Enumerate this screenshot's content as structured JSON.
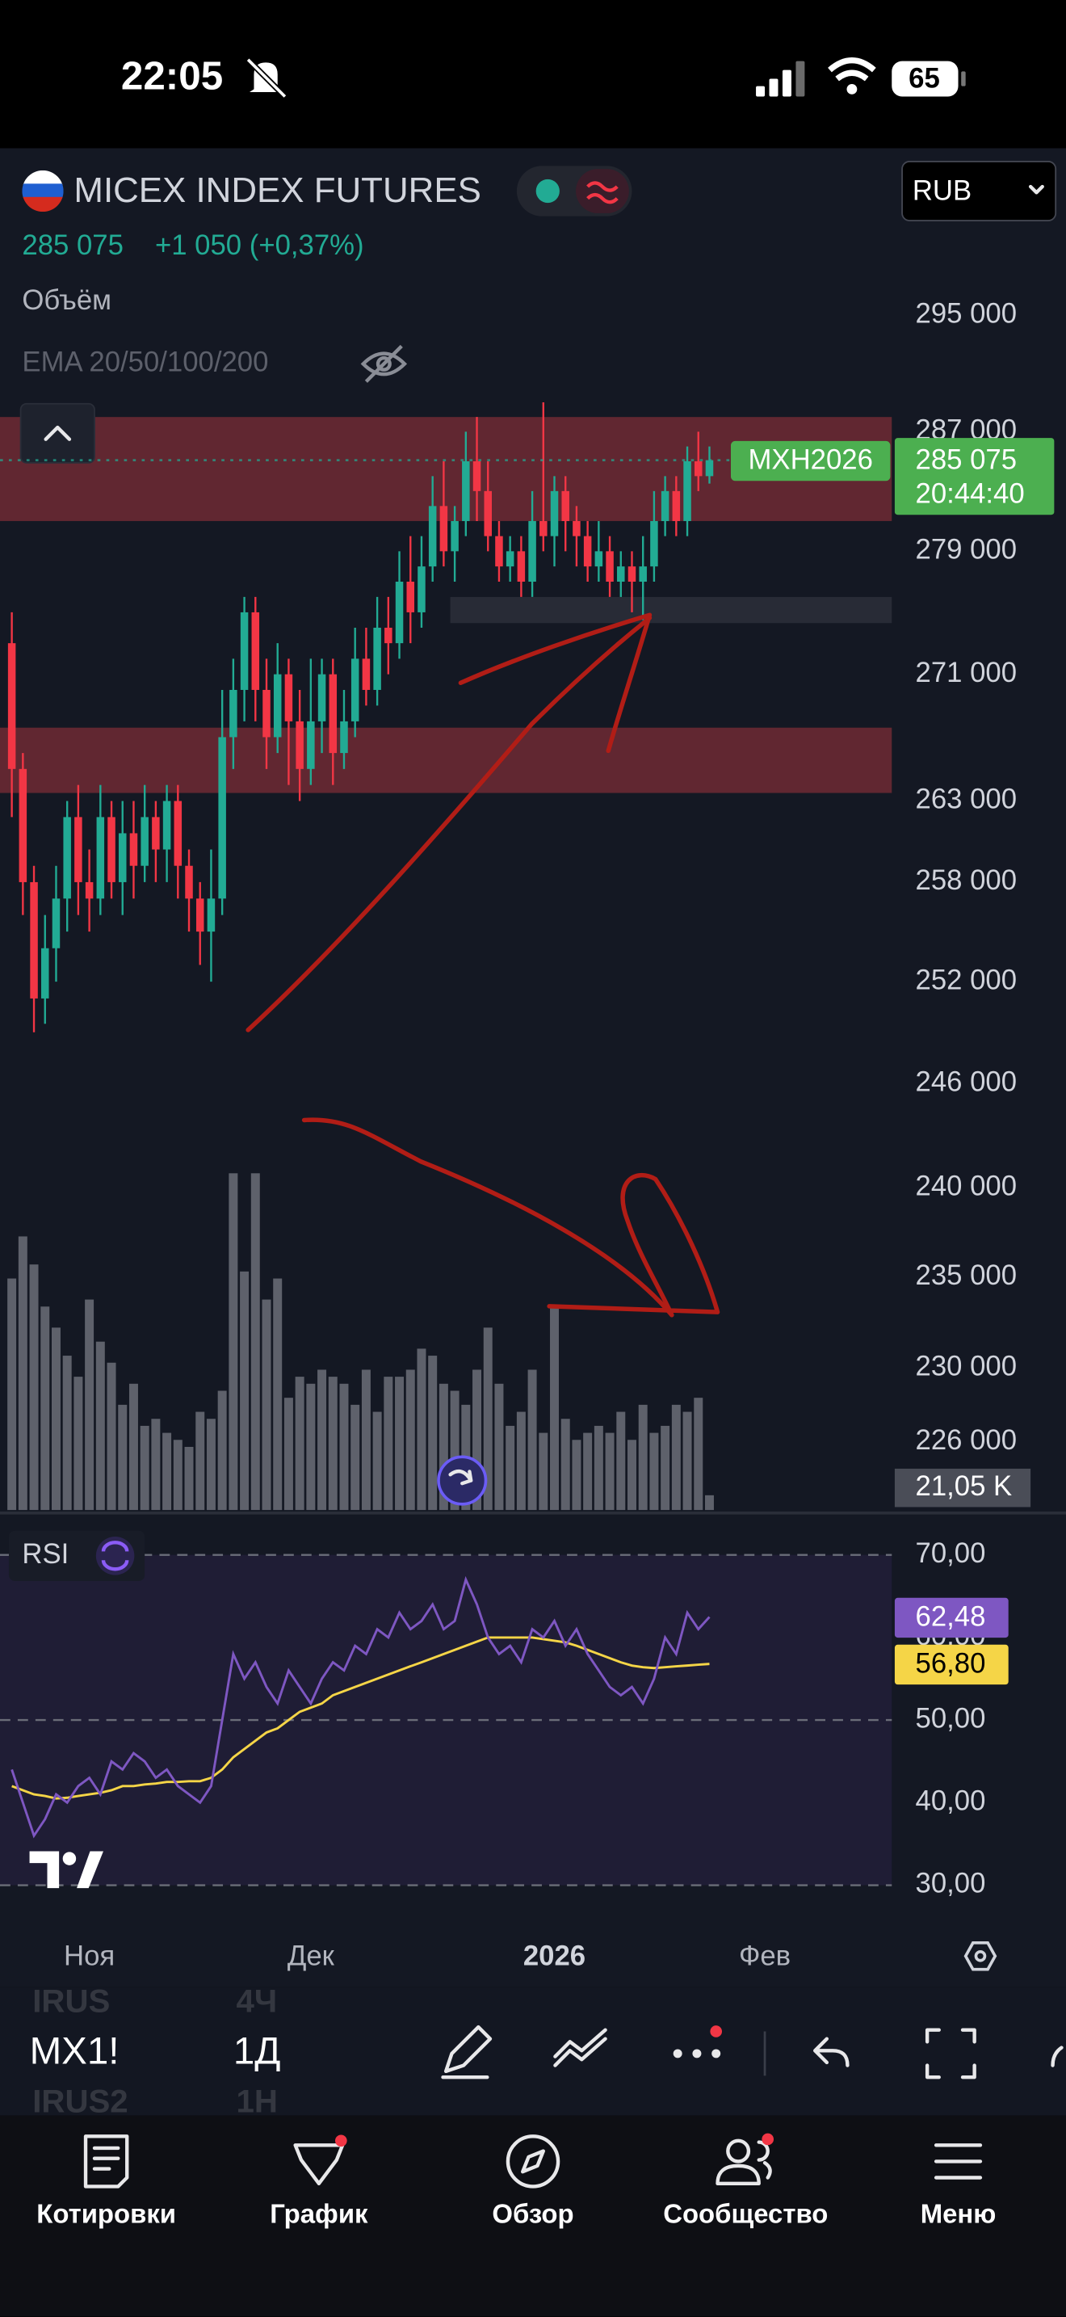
{
  "status_bar": {
    "time": "22:05",
    "battery": "65"
  },
  "header": {
    "symbol": "MICEX INDEX FUTURES",
    "currency": "RUB",
    "price": "285 075",
    "change": "+1 050 (+0,37%)",
    "volume_indicator": "Объём",
    "ema_indicator": "EMA 20/50/100/200"
  },
  "chart_data": {
    "type": "candlestick",
    "log_scale": true,
    "up_color": "#22ab94",
    "down_color": "#f23645",
    "categories": [
      null,
      null,
      null,
      null,
      null,
      null,
      null,
      "Ноя",
      null,
      null,
      null,
      null,
      null,
      null,
      null,
      null,
      null,
      null,
      null,
      null,
      null,
      null,
      null,
      null,
      null,
      null,
      null,
      "Дек",
      null,
      null,
      null,
      null,
      null,
      null,
      null,
      null,
      null,
      null,
      null,
      null,
      null,
      null,
      null,
      null,
      null,
      null,
      null,
      null,
      null,
      "2026",
      null,
      null,
      null,
      null,
      null,
      null,
      null,
      null,
      null,
      null,
      null,
      null,
      null,
      null,
      null,
      null,
      null,
      null,
      "Фев",
      null,
      null,
      null
    ],
    "open": [
      273000,
      265000,
      258000,
      251000,
      254000,
      257000,
      262000,
      258000,
      257000,
      262000,
      258000,
      261000,
      259000,
      262000,
      260000,
      263000,
      259000,
      257000,
      255000,
      257000,
      267000,
      270000,
      275000,
      270000,
      267000,
      271000,
      268000,
      265000,
      268000,
      271000,
      266000,
      268000,
      272000,
      270000,
      274000,
      273000,
      277000,
      275000,
      278000,
      282000,
      279000,
      281000,
      285000,
      283000,
      280000,
      278000,
      279000,
      277000,
      281000,
      280000,
      283000,
      281000,
      280000,
      278000,
      279000,
      277000,
      278000,
      277000,
      278000,
      281000,
      283000,
      281000,
      285000,
      284000,
      null,
      null,
      null,
      null,
      null,
      null,
      null,
      null
    ],
    "high": [
      275000,
      266000,
      259000,
      256000,
      259000,
      263000,
      264000,
      260000,
      264000,
      263000,
      263000,
      263000,
      264000,
      263000,
      264000,
      264000,
      260000,
      258000,
      260000,
      270000,
      272000,
      276000,
      276000,
      272000,
      273000,
      272000,
      270000,
      272000,
      272000,
      272000,
      270000,
      274000,
      274000,
      276000,
      276000,
      279000,
      280000,
      280000,
      284000,
      285000,
      282000,
      287000,
      288000,
      285000,
      281000,
      280000,
      280000,
      283000,
      289000,
      284000,
      284000,
      282000,
      281000,
      281000,
      280000,
      279000,
      279000,
      280000,
      283000,
      284000,
      284000,
      286000,
      287000,
      286000,
      null,
      null,
      null,
      null,
      null,
      null,
      null,
      null
    ],
    "low": [
      262000,
      256000,
      249000,
      249500,
      252000,
      255000,
      256000,
      255000,
      256000,
      257000,
      256000,
      257000,
      258000,
      258000,
      258000,
      257000,
      255000,
      253000,
      252000,
      256000,
      265000,
      268000,
      268000,
      265000,
      266000,
      264000,
      263000,
      264000,
      266000,
      264000,
      265000,
      267000,
      269000,
      269000,
      271000,
      272000,
      273000,
      274000,
      277000,
      278000,
      277000,
      280000,
      281000,
      279000,
      277000,
      277000,
      276000,
      276000,
      279000,
      278000,
      279000,
      278000,
      277000,
      277000,
      276000,
      276000,
      275000,
      274500,
      277000,
      280000,
      280000,
      280000,
      283000,
      283500,
      null,
      null,
      null,
      null,
      null,
      null,
      null,
      null
    ],
    "close": [
      265000,
      258000,
      251000,
      254000,
      257000,
      262000,
      258000,
      257000,
      262000,
      258000,
      261000,
      259000,
      262000,
      260000,
      263000,
      259000,
      257000,
      255000,
      257000,
      267000,
      270000,
      275000,
      270000,
      267000,
      271000,
      268000,
      265000,
      268000,
      271000,
      266000,
      268000,
      272000,
      270000,
      274000,
      273000,
      277000,
      275000,
      278000,
      282000,
      279000,
      281000,
      285000,
      283000,
      280000,
      278000,
      279000,
      277000,
      281000,
      280000,
      283000,
      281000,
      280000,
      278000,
      279000,
      277000,
      278000,
      277000,
      278000,
      281000,
      283000,
      281000,
      285000,
      284000,
      285075,
      null,
      null,
      null,
      null,
      null,
      null,
      null,
      null
    ],
    "ylim": [
      222400,
      306900
    ],
    "yticks": [
      {
        "value": 295000,
        "label": "295 000"
      },
      {
        "value": 287000,
        "label": "287 000"
      },
      {
        "value": 279000,
        "label": "279 000"
      },
      {
        "value": 271000,
        "label": "271 000"
      },
      {
        "value": 263000,
        "label": "263 000"
      },
      {
        "value": 258000,
        "label": "258 000"
      },
      {
        "value": 252000,
        "label": "252 000"
      },
      {
        "value": 246000,
        "label": "246 000"
      },
      {
        "value": 240000,
        "label": "240 000"
      },
      {
        "value": 235000,
        "label": "235 000"
      },
      {
        "value": 230000,
        "label": "230 000"
      },
      {
        "value": 226000,
        "label": "226 000"
      }
    ],
    "zones": [
      {
        "low": 281000,
        "high": 288000,
        "color": "#6e2a34"
      },
      {
        "low": 263500,
        "high": 267600,
        "color": "#6e2a34"
      },
      {
        "low": 274300,
        "high": 276000,
        "color": "#2a2e39"
      }
    ],
    "last_price_symbol": "MXH2026",
    "last_price_label": {
      "value": 285075,
      "label": "285 075"
    },
    "countdown": "20:44:40",
    "volume": {
      "color": "#6b6e78",
      "values": [
        330,
        390,
        350,
        290,
        260,
        220,
        190,
        300,
        240,
        210,
        150,
        180,
        120,
        130,
        110,
        100,
        90,
        140,
        130,
        170,
        480,
        340,
        480,
        300,
        330,
        160,
        190,
        180,
        200,
        190,
        180,
        150,
        200,
        140,
        190,
        190,
        200,
        230,
        220,
        180,
        170,
        150,
        200,
        260,
        180,
        120,
        140,
        200,
        110,
        290,
        130,
        100,
        110,
        120,
        110,
        140,
        100,
        150,
        110,
        120,
        150,
        140,
        160,
        21.05,
        null,
        null,
        null,
        null,
        null,
        null,
        null,
        null
      ],
      "last_label": {
        "value": 21.05,
        "label": "21,05 K"
      }
    }
  },
  "rsi": {
    "type": "line",
    "title": "RSI",
    "ylim": [
      27.5,
      74
    ],
    "yticks": [
      {
        "value": 70,
        "label": "70,00"
      },
      {
        "value": 60,
        "label": "60,00"
      },
      {
        "value": 50,
        "label": "50,00"
      },
      {
        "value": 40,
        "label": "40,00"
      },
      {
        "value": 30,
        "label": "30,00"
      }
    ],
    "levels": [
      70,
      50,
      30
    ],
    "series": [
      {
        "color": "#7e57c2",
        "values": [
          44,
          40,
          36,
          38,
          41,
          40,
          42,
          43,
          41,
          45,
          44,
          46,
          45,
          43,
          44,
          42,
          41,
          40,
          42,
          50,
          58,
          55,
          57,
          54,
          52,
          56,
          54,
          52,
          55,
          57,
          56,
          59,
          58,
          61,
          60,
          63,
          61,
          62,
          64,
          61,
          62,
          67,
          64,
          60,
          58,
          59,
          57,
          61,
          60,
          62,
          59,
          61,
          58,
          56,
          54,
          53,
          54,
          52,
          55,
          60,
          58,
          63,
          61,
          62.48,
          null,
          null,
          null,
          null,
          null,
          null,
          null,
          null
        ],
        "value_label": {
          "value": 62.48,
          "label": "62,48"
        }
      },
      {
        "color": "#f5d547",
        "values": [
          42,
          41.5,
          41,
          40.8,
          40.5,
          40.6,
          40.8,
          41,
          41.2,
          41.5,
          42,
          42,
          42.2,
          42.3,
          42.5,
          42.5,
          42.6,
          42.6,
          43,
          44,
          45.5,
          46.5,
          47.5,
          48.5,
          49,
          50,
          51,
          51.5,
          52,
          53,
          53.5,
          54,
          54.5,
          55,
          55.5,
          56,
          56.5,
          57,
          57.5,
          58,
          58.5,
          59,
          59.5,
          60,
          60,
          60,
          60,
          60,
          59.8,
          59.6,
          59.4,
          59,
          58.5,
          58,
          57.5,
          57,
          56.6,
          56.4,
          56.3,
          56.4,
          56.5,
          56.6,
          56.7,
          56.8,
          null,
          null,
          null,
          null,
          null,
          null,
          null,
          null
        ],
        "value_label": {
          "value": 56.8,
          "label": "56,80"
        }
      }
    ]
  },
  "toolbar": {
    "symbol": "MX1!",
    "interval": "1Д",
    "background_rows": [
      [
        "IRUS",
        "4Ч"
      ],
      [
        "IRUS2",
        "1Н"
      ]
    ]
  },
  "tabs": [
    "Котировки",
    "График",
    "Обзор",
    "Сообщество",
    "Меню"
  ]
}
